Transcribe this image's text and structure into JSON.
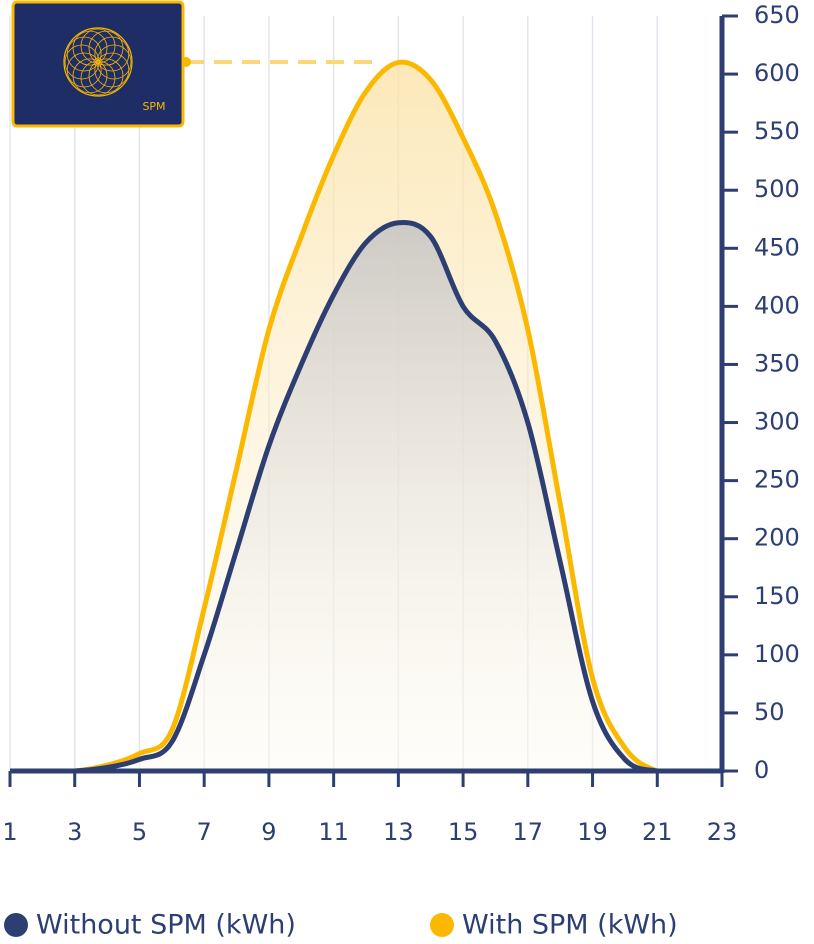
{
  "chart_data": {
    "type": "line",
    "x": [
      1,
      2,
      3,
      4,
      5,
      6,
      7,
      8,
      9,
      10,
      11,
      12,
      13,
      14,
      15,
      16,
      17,
      18,
      19,
      20,
      21,
      22,
      23
    ],
    "series": [
      {
        "name": "Without SPM (kWh)",
        "color": "#2d3e73",
        "values": [
          0,
          0,
          0,
          3,
          10,
          25,
          100,
          190,
          280,
          350,
          410,
          455,
          472,
          460,
          400,
          370,
          300,
          180,
          60,
          10,
          0,
          0,
          0
        ]
      },
      {
        "name": "With SPM (kWh)",
        "color": "#fbb800",
        "values": [
          0,
          0,
          0,
          5,
          15,
          35,
          140,
          260,
          380,
          460,
          530,
          585,
          610,
          595,
          545,
          480,
          380,
          230,
          80,
          20,
          0,
          0,
          0
        ]
      }
    ],
    "xlim": [
      1,
      23
    ],
    "xticks": [
      1,
      3,
      5,
      7,
      9,
      11,
      13,
      15,
      17,
      19,
      21,
      23
    ],
    "ylim": [
      0,
      650
    ],
    "yticks": [
      0,
      50,
      100,
      150,
      200,
      250,
      300,
      350,
      400,
      450,
      500,
      550,
      600,
      650
    ],
    "grid": true,
    "annotation": "SPM"
  }
}
